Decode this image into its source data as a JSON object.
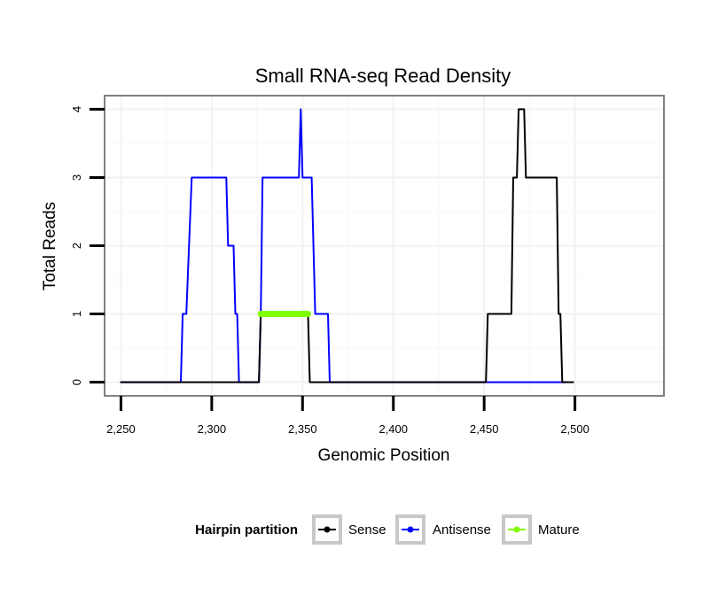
{
  "chart_data": {
    "type": "line",
    "title": "Small RNA-seq Read Density",
    "xlabel": "Genomic Position",
    "ylabel": "Total Reads",
    "xlim": [
      2241,
      2549
    ],
    "ylim": [
      -0.2,
      4.2
    ],
    "x_ticks": [
      2250,
      2300,
      2350,
      2400,
      2450,
      2500
    ],
    "x_tick_labels": [
      "2,250",
      "2,300",
      "2,350",
      "2,400",
      "2,450",
      "2,500"
    ],
    "y_ticks": [
      0,
      1,
      2,
      3,
      4
    ],
    "y_tick_labels": [
      "0",
      "1",
      "2",
      "3",
      "4"
    ],
    "grid": true,
    "legend": {
      "title": "Hairpin partition",
      "position": "bottom",
      "entries": [
        "Sense",
        "Antisense",
        "Mature"
      ]
    },
    "series": [
      {
        "name": "Antisense",
        "color": "#0000ff",
        "x": [
          2250,
          2283,
          2284,
          2286,
          2289,
          2290,
          2308,
          2309,
          2311,
          2312,
          2313,
          2314,
          2315,
          2316,
          2326,
          2327,
          2328,
          2330,
          2347,
          2348,
          2349,
          2350,
          2351,
          2352,
          2355,
          2356,
          2357,
          2360,
          2364,
          2365,
          2452,
          2495
        ],
        "y": [
          0,
          0,
          1,
          1,
          3,
          3,
          3,
          2,
          2,
          2,
          1,
          1,
          0,
          0,
          0,
          1,
          3,
          3,
          3,
          3,
          4,
          3,
          3,
          3,
          3,
          2,
          1,
          1,
          1,
          0,
          0,
          0
        ]
      },
      {
        "name": "Sense",
        "color": "#000000",
        "x": [
          2250,
          2326,
          2327,
          2328,
          2353,
          2354,
          2355,
          2451,
          2452,
          2465,
          2466,
          2468,
          2469,
          2470,
          2472,
          2473,
          2474,
          2490,
          2491,
          2492,
          2493,
          2494,
          2499
        ],
        "y": [
          0,
          0,
          1,
          1,
          1,
          0,
          0,
          0,
          1,
          1,
          3,
          3,
          4,
          4,
          4,
          3,
          3,
          3,
          1,
          1,
          0,
          0,
          0
        ]
      },
      {
        "name": "Mature",
        "color": "#7fff00",
        "x": [
          2327,
          2353
        ],
        "y": [
          1,
          1
        ]
      }
    ]
  }
}
